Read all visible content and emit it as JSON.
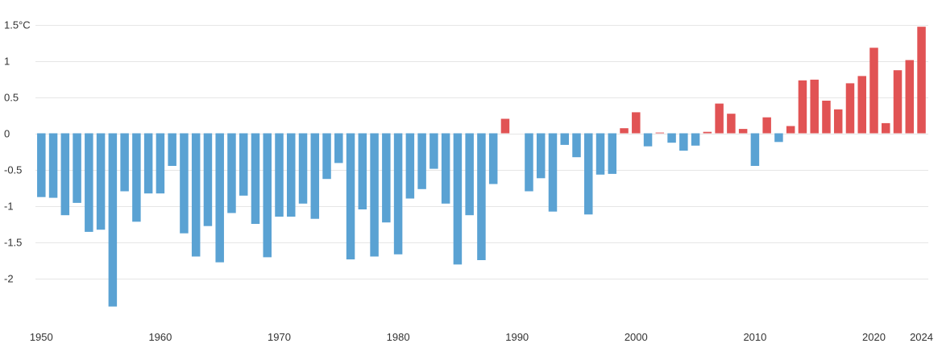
{
  "chart_data": {
    "type": "bar",
    "title": "",
    "xlabel": "",
    "ylabel": "",
    "ylim": [
      -2.45,
      1.5
    ],
    "grid": true,
    "y_ticks": [
      {
        "value": 1.5,
        "label": "1.5°C"
      },
      {
        "value": 1,
        "label": "1"
      },
      {
        "value": 0.5,
        "label": "0.5"
      },
      {
        "value": 0,
        "label": "0"
      },
      {
        "value": -0.5,
        "label": "-0.5"
      },
      {
        "value": -1,
        "label": "-1"
      },
      {
        "value": -1.5,
        "label": "-1.5"
      },
      {
        "value": -2,
        "label": "-2"
      }
    ],
    "x_ticks": [
      {
        "value": 1950,
        "label": "1950"
      },
      {
        "value": 1960,
        "label": "1960"
      },
      {
        "value": 1970,
        "label": "1970"
      },
      {
        "value": 1980,
        "label": "1980"
      },
      {
        "value": 1990,
        "label": "1990"
      },
      {
        "value": 2000,
        "label": "2000"
      },
      {
        "value": 2010,
        "label": "2010"
      },
      {
        "value": 2020,
        "label": "2020"
      },
      {
        "value": 2024,
        "label": "2024"
      }
    ],
    "colors": {
      "positive": "#e15354",
      "negative": "#5aa2d3",
      "grid": "#e6e6e6",
      "text": "#333333"
    },
    "x": [
      1950,
      1951,
      1952,
      1953,
      1954,
      1955,
      1956,
      1957,
      1958,
      1959,
      1960,
      1961,
      1962,
      1963,
      1964,
      1965,
      1966,
      1967,
      1968,
      1969,
      1970,
      1971,
      1972,
      1973,
      1974,
      1975,
      1976,
      1977,
      1978,
      1979,
      1980,
      1981,
      1982,
      1983,
      1984,
      1985,
      1986,
      1987,
      1988,
      1989,
      1990,
      1991,
      1992,
      1993,
      1994,
      1995,
      1996,
      1997,
      1998,
      1999,
      2000,
      2001,
      2002,
      2003,
      2004,
      2005,
      2006,
      2007,
      2008,
      2009,
      2010,
      2011,
      2012,
      2013,
      2014,
      2015,
      2016,
      2017,
      2018,
      2019,
      2020,
      2021,
      2022,
      2023,
      2024
    ],
    "values": [
      -0.88,
      -0.89,
      -1.13,
      -0.96,
      -1.36,
      -1.33,
      -2.39,
      -0.8,
      -1.22,
      -0.83,
      -0.83,
      -0.45,
      -1.38,
      -1.7,
      -1.28,
      -1.78,
      -1.1,
      -0.86,
      -1.25,
      -1.71,
      -1.15,
      -1.15,
      -0.97,
      -1.18,
      -0.63,
      -0.41,
      -1.74,
      -1.05,
      -1.7,
      -1.23,
      -1.67,
      -0.9,
      -0.77,
      -0.49,
      -0.97,
      -1.81,
      -1.13,
      -1.75,
      -0.7,
      0.2,
      0.0,
      -0.8,
      -0.62,
      -1.08,
      -0.16,
      -0.33,
      -1.12,
      -0.57,
      -0.56,
      0.07,
      0.29,
      -0.18,
      0.01,
      -0.13,
      -0.24,
      -0.17,
      0.02,
      0.41,
      0.27,
      0.06,
      -0.45,
      0.22,
      -0.12,
      0.1,
      0.73,
      0.74,
      0.45,
      0.33,
      0.69,
      0.79,
      1.18,
      0.14,
      0.87,
      1.01,
      1.47
    ]
  }
}
